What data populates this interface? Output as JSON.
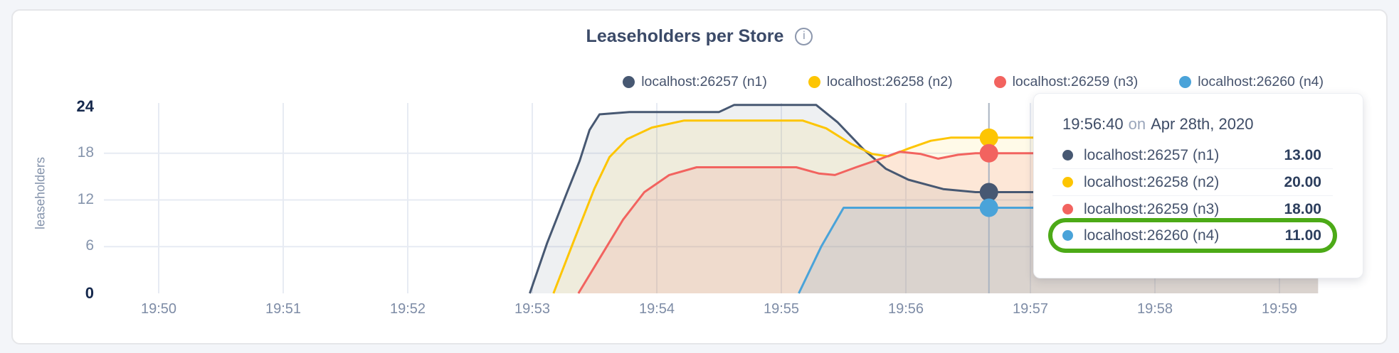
{
  "page": {
    "background": "#f3f5f9",
    "card_background": "#ffffff",
    "card_border": "#e5e6e9"
  },
  "theme": {
    "gridline": "#e7ebf3",
    "crosshair": "#a9b3c1",
    "axis_text": "#7e8ca6",
    "axis_text_emphasis": "#16294d",
    "title_text": "#3b4a68",
    "legend_text": "#46536d",
    "tooltip_text": "#44526c",
    "tooltip_value_text": "#2c3e5d",
    "tooltip_muted_text": "#9aa6bb",
    "highlight_ring": "#4caa17"
  },
  "chart": {
    "title": "Leaseholders per Store",
    "info_icon": "i",
    "ylabel": "leaseholders"
  },
  "chart_data": {
    "type": "area",
    "title": "Leaseholders per Store",
    "xlabel": "",
    "ylabel": "leaseholders",
    "ylim": [
      0,
      24
    ],
    "grid": true,
    "legend_position": "top-right",
    "x_tick_labels": [
      "19:50",
      "19:51",
      "19:52",
      "19:53",
      "19:54",
      "19:55",
      "19:56",
      "19:57",
      "19:58",
      "19:59"
    ],
    "x_minutes_per_tick": 1,
    "x_domain_minutes": [
      0,
      9.31
    ],
    "y_ticks": [
      {
        "value": 0,
        "label": "0",
        "emphasis": true
      },
      {
        "value": 6,
        "label": "6",
        "emphasis": false
      },
      {
        "value": 12,
        "label": "12",
        "emphasis": false
      },
      {
        "value": 18,
        "label": "18",
        "emphasis": false
      },
      {
        "value": 24,
        "label": "24",
        "emphasis": true
      }
    ],
    "series": [
      {
        "name": "localhost:26257 (n1)",
        "color": "#475872",
        "fill_opacity": 0.09,
        "points": [
          [
            2.98,
            0
          ],
          [
            3.12,
            6.5
          ],
          [
            3.28,
            13
          ],
          [
            3.38,
            17
          ],
          [
            3.46,
            21
          ],
          [
            3.54,
            23
          ],
          [
            3.78,
            23.3
          ],
          [
            4.5,
            23.3
          ],
          [
            4.62,
            24.2
          ],
          [
            5.28,
            24.2
          ],
          [
            5.45,
            22
          ],
          [
            5.66,
            18.5
          ],
          [
            5.84,
            16
          ],
          [
            6.02,
            14.6
          ],
          [
            6.3,
            13.4
          ],
          [
            6.56,
            13
          ],
          [
            9.31,
            13
          ]
        ]
      },
      {
        "name": "localhost:26258 (n2)",
        "color": "#fdc502",
        "fill_opacity": 0.09,
        "points": [
          [
            3.17,
            0
          ],
          [
            3.34,
            7
          ],
          [
            3.5,
            13.5
          ],
          [
            3.62,
            17.5
          ],
          [
            3.76,
            19.8
          ],
          [
            3.96,
            21.3
          ],
          [
            4.22,
            22.2
          ],
          [
            5.17,
            22.2
          ],
          [
            5.36,
            21.2
          ],
          [
            5.56,
            19.2
          ],
          [
            5.73,
            17.9
          ],
          [
            5.86,
            17.6
          ],
          [
            6.02,
            18.6
          ],
          [
            6.2,
            19.6
          ],
          [
            6.36,
            20
          ],
          [
            9.31,
            20
          ]
        ]
      },
      {
        "name": "localhost:26259 (n3)",
        "color": "#f2635f",
        "fill_opacity": 0.12,
        "points": [
          [
            3.37,
            0
          ],
          [
            3.56,
            5
          ],
          [
            3.73,
            9.5
          ],
          [
            3.9,
            13
          ],
          [
            4.1,
            15.2
          ],
          [
            4.32,
            16.2
          ],
          [
            5.12,
            16.2
          ],
          [
            5.3,
            15.4
          ],
          [
            5.43,
            15.2
          ],
          [
            5.6,
            16.2
          ],
          [
            5.8,
            17.3
          ],
          [
            5.95,
            18.2
          ],
          [
            6.12,
            17.9
          ],
          [
            6.26,
            17.3
          ],
          [
            6.42,
            17.8
          ],
          [
            6.56,
            18
          ],
          [
            9.31,
            18
          ]
        ]
      },
      {
        "name": "localhost:26260 (n4)",
        "color": "#4aa3d9",
        "fill_opacity": 0.13,
        "points": [
          [
            5.14,
            0
          ],
          [
            5.32,
            6
          ],
          [
            5.5,
            11
          ],
          [
            9.31,
            11
          ]
        ]
      }
    ],
    "hover": {
      "time_label": "19:56:40",
      "t_minutes": 6.667,
      "values": [
        13,
        20,
        18,
        11
      ]
    }
  },
  "tooltip": {
    "time": "19:56:40",
    "connector": "on",
    "date": "Apr 28th, 2020",
    "rows": [
      {
        "name": "localhost:26257 (n1)",
        "value": "13.00",
        "highlighted": false
      },
      {
        "name": "localhost:26258 (n2)",
        "value": "20.00",
        "highlighted": false
      },
      {
        "name": "localhost:26259 (n3)",
        "value": "18.00",
        "highlighted": false
      },
      {
        "name": "localhost:26260 (n4)",
        "value": "11.00",
        "highlighted": true
      }
    ]
  }
}
